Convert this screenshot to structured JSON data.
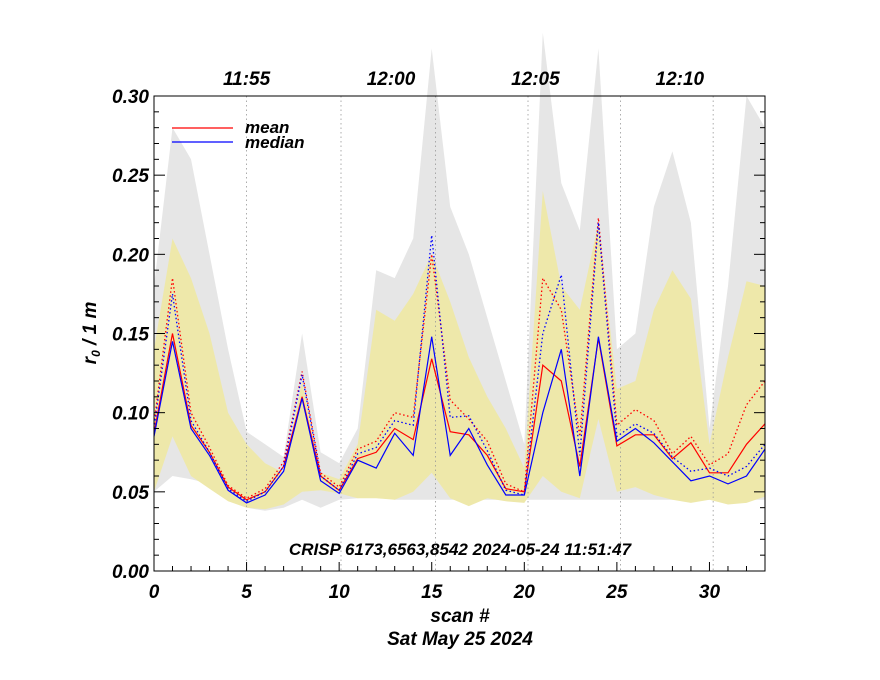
{
  "chart_data": {
    "type": "line",
    "title": "",
    "xlabel": "scan #",
    "ylabel_main": "r",
    "ylabel_sub": "0",
    "ylabel_rest": " / 1 m",
    "date_label": "Sat May 25 2024",
    "annotation": "CRISP 6173,6563,8542 2024-05-24 11:51:47",
    "xlim": [
      0,
      33
    ],
    "ylim": [
      0.0,
      0.3
    ],
    "xticks": [
      0,
      5,
      10,
      15,
      20,
      25,
      30
    ],
    "xtick_labels": [
      "0",
      "5",
      "10",
      "15",
      "20",
      "25",
      "30"
    ],
    "yticks": [
      0.0,
      0.05,
      0.1,
      0.15,
      0.2,
      0.25,
      0.3
    ],
    "ytick_labels": [
      "0.00",
      "0.05",
      "0.10",
      "0.15",
      "0.20",
      "0.25",
      "0.30"
    ],
    "time_ticks": [
      {
        "scan": 5,
        "label": "11:55"
      },
      {
        "scan": 12.8,
        "label": "12:00"
      },
      {
        "scan": 20.6,
        "label": "12:05"
      },
      {
        "scan": 28.4,
        "label": "12:10"
      }
    ],
    "time_gridlines": [
      5,
      10.1,
      15.2,
      20.2,
      25.2,
      30.2
    ],
    "legend": [
      {
        "name": "mean",
        "color": "#ff0000"
      },
      {
        "name": "median",
        "color": "#0000ff"
      }
    ],
    "gray_band": {
      "upper": [
        0.18,
        0.28,
        0.26,
        0.2,
        0.14,
        0.088,
        0.08,
        0.072,
        0.15,
        0.075,
        0.068,
        0.09,
        0.19,
        0.185,
        0.21,
        0.33,
        0.23,
        0.2,
        0.16,
        0.12,
        0.08,
        0.34,
        0.245,
        0.215,
        0.33,
        0.14,
        0.15,
        0.23,
        0.265,
        0.22,
        0.09,
        0.18,
        0.3,
        0.28
      ],
      "lower": [
        0.05,
        0.06,
        0.058,
        0.055,
        0.045,
        0.04,
        0.038,
        0.04,
        0.045,
        0.04,
        0.045,
        0.046,
        0.048,
        0.045,
        0.045,
        0.045,
        0.045,
        0.045,
        0.045,
        0.045,
        0.045,
        0.045,
        0.045,
        0.045,
        0.045,
        0.045,
        0.045,
        0.045,
        0.045,
        0.045,
        0.045,
        0.045,
        0.045,
        0.045
      ]
    },
    "yellow_band": {
      "upper": [
        0.14,
        0.21,
        0.185,
        0.15,
        0.1,
        0.08,
        0.068,
        0.062,
        0.12,
        0.062,
        0.058,
        0.08,
        0.165,
        0.158,
        0.175,
        0.2,
        0.17,
        0.135,
        0.11,
        0.09,
        0.065,
        0.24,
        0.18,
        0.165,
        0.22,
        0.115,
        0.12,
        0.165,
        0.19,
        0.172,
        0.08,
        0.135,
        0.183,
        0.18
      ],
      "lower": [
        0.05,
        0.085,
        0.06,
        0.052,
        0.044,
        0.04,
        0.039,
        0.042,
        0.05,
        0.051,
        0.049,
        0.046,
        0.046,
        0.045,
        0.05,
        0.062,
        0.046,
        0.041,
        0.046,
        0.044,
        0.043,
        0.06,
        0.05,
        0.046,
        0.096,
        0.05,
        0.053,
        0.048,
        0.045,
        0.043,
        0.045,
        0.042,
        0.043,
        0.047
      ]
    },
    "series": [
      {
        "name": "mean",
        "color": "#ff0000",
        "style": "solid",
        "values": [
          0.087,
          0.15,
          0.092,
          0.075,
          0.053,
          0.045,
          0.05,
          0.066,
          0.11,
          0.06,
          0.051,
          0.071,
          0.075,
          0.09,
          0.083,
          0.134,
          0.088,
          0.086,
          0.073,
          0.052,
          0.05,
          0.13,
          0.12,
          0.066,
          0.147,
          0.079,
          0.086,
          0.086,
          0.071,
          0.081,
          0.062,
          0.062,
          0.08,
          0.093
        ]
      },
      {
        "name": "median",
        "color": "#0000ff",
        "style": "solid",
        "values": [
          0.085,
          0.145,
          0.09,
          0.073,
          0.051,
          0.043,
          0.048,
          0.063,
          0.109,
          0.057,
          0.049,
          0.07,
          0.065,
          0.087,
          0.073,
          0.148,
          0.073,
          0.09,
          0.067,
          0.048,
          0.048,
          0.1,
          0.14,
          0.06,
          0.148,
          0.082,
          0.09,
          0.081,
          0.069,
          0.057,
          0.06,
          0.055,
          0.06,
          0.077
        ]
      },
      {
        "name": "mean (dotted)",
        "color": "#ff0000",
        "style": "dotted",
        "values": [
          0.093,
          0.185,
          0.1,
          0.078,
          0.054,
          0.046,
          0.052,
          0.069,
          0.126,
          0.062,
          0.053,
          0.077,
          0.082,
          0.1,
          0.097,
          0.2,
          0.108,
          0.096,
          0.082,
          0.055,
          0.05,
          0.185,
          0.165,
          0.085,
          0.223,
          0.092,
          0.102,
          0.095,
          0.074,
          0.085,
          0.067,
          0.074,
          0.105,
          0.12
        ]
      },
      {
        "name": "median (dotted)",
        "color": "#0000ff",
        "style": "dotted",
        "values": [
          0.09,
          0.175,
          0.095,
          0.075,
          0.052,
          0.044,
          0.05,
          0.066,
          0.124,
          0.06,
          0.051,
          0.074,
          0.078,
          0.095,
          0.092,
          0.212,
          0.097,
          0.098,
          0.076,
          0.051,
          0.048,
          0.15,
          0.187,
          0.073,
          0.22,
          0.085,
          0.093,
          0.087,
          0.072,
          0.063,
          0.065,
          0.06,
          0.066,
          0.08
        ]
      }
    ]
  }
}
